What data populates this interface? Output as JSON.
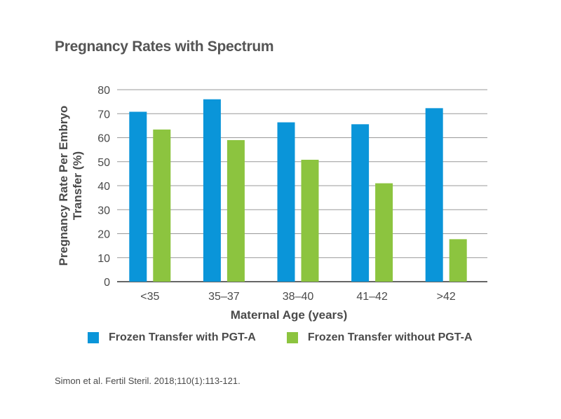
{
  "colors": {
    "series_with": "#0a95d9",
    "series_without": "#8cc43f",
    "gridline": "#999999"
  },
  "chart_data": {
    "type": "bar",
    "title": "Pregnancy Rates with Spectrum",
    "xlabel": "Maternal Age (years)",
    "ylabel_lines": [
      "Pregnancy Rate Per Embryo",
      "Transfer (%)"
    ],
    "categories": [
      "<35",
      "35–37",
      "38–40",
      "41–42",
      ">42"
    ],
    "ylim": [
      0,
      80
    ],
    "yticks": [
      "0",
      "10",
      "20",
      "30",
      "40",
      "50",
      "60",
      "70",
      "80"
    ],
    "grid": true,
    "legend_position": "bottom",
    "series": [
      {
        "name": "Frozen Transfer with PGT-A",
        "values": [
          70.8,
          76.0,
          66.4,
          65.6,
          72.3
        ]
      },
      {
        "name": "Frozen Transfer without PGT-A",
        "values": [
          63.4,
          59.0,
          50.8,
          41.0,
          17.7
        ]
      }
    ]
  },
  "source": "Simon et al. Fertil Steril. 2018;110(1):113-121."
}
